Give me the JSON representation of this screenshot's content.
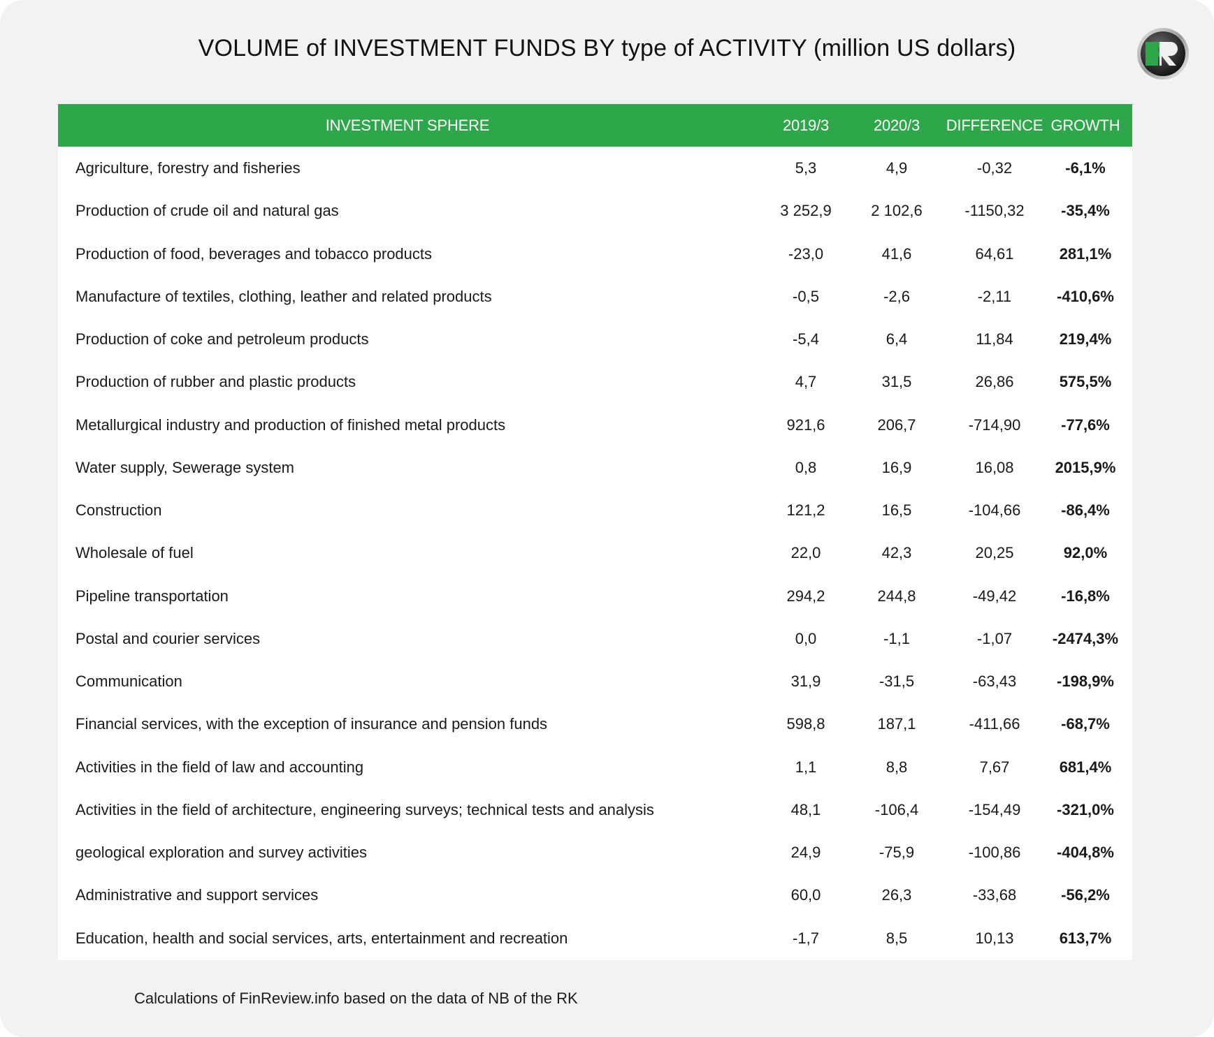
{
  "title": "VOLUME of INVESTMENT FUNDS BY type of ACTIVITY (million US dollars)",
  "logo_text": "FR",
  "source": "Calculations of FinReview.info based on the data of NB of the RK",
  "colors": {
    "header_green": "#2ea64a",
    "background": "#f2f2f2",
    "table_bg": "#ffffff"
  },
  "chart_data": {
    "type": "table",
    "title": "VOLUME of INVESTMENT FUNDS BY type of ACTIVITY (million US dollars)",
    "columns": [
      "INVESTMENT SPHERE",
      "2019/3",
      "2020/3",
      "DIFFERENCE",
      "GROWTH"
    ],
    "rows": [
      [
        "Agriculture, forestry and fisheries",
        "5,3",
        "4,9",
        "-0,32",
        "-6,1%"
      ],
      [
        "Production of crude oil and natural gas",
        "3 252,9",
        "2 102,6",
        "-1150,32",
        "-35,4%"
      ],
      [
        "Production of food, beverages and tobacco products",
        "-23,0",
        "41,6",
        "64,61",
        "281,1%"
      ],
      [
        "Manufacture of textiles, clothing, leather and related products",
        "-0,5",
        "-2,6",
        "-2,11",
        "-410,6%"
      ],
      [
        "Production of coke and petroleum products",
        "-5,4",
        "6,4",
        "11,84",
        "219,4%"
      ],
      [
        "Production of rubber and plastic products",
        "4,7",
        "31,5",
        "26,86",
        "575,5%"
      ],
      [
        "Metallurgical industry and production of finished metal products",
        "921,6",
        "206,7",
        "-714,90",
        "-77,6%"
      ],
      [
        "Water supply, Sewerage system",
        "0,8",
        "16,9",
        "16,08",
        "2015,9%"
      ],
      [
        "Construction",
        "121,2",
        "16,5",
        "-104,66",
        "-86,4%"
      ],
      [
        "Wholesale of fuel",
        "22,0",
        "42,3",
        "20,25",
        "92,0%"
      ],
      [
        "Pipeline transportation",
        "294,2",
        "244,8",
        "-49,42",
        "-16,8%"
      ],
      [
        "Postal and courier services",
        "0,0",
        "-1,1",
        "-1,07",
        "-2474,3%"
      ],
      [
        "Communication",
        "31,9",
        "-31,5",
        "-63,43",
        "-198,9%"
      ],
      [
        "Financial services, with the exception of insurance and pension funds",
        "598,8",
        "187,1",
        "-411,66",
        "-68,7%"
      ],
      [
        "Activities in the field of law and accounting",
        "1,1",
        "8,8",
        "7,67",
        "681,4%"
      ],
      [
        "Activities in the field of architecture, engineering surveys; technical tests and analysis",
        "48,1",
        "-106,4",
        "-154,49",
        "-321,0%"
      ],
      [
        "geological exploration and survey activities",
        "24,9",
        "-75,9",
        "-100,86",
        "-404,8%"
      ],
      [
        "Administrative and support services",
        "60,0",
        "26,3",
        "-33,68",
        "-56,2%"
      ],
      [
        "Education, health and social services, arts, entertainment and recreation",
        "-1,7",
        "8,5",
        "10,13",
        "613,7%"
      ]
    ]
  }
}
